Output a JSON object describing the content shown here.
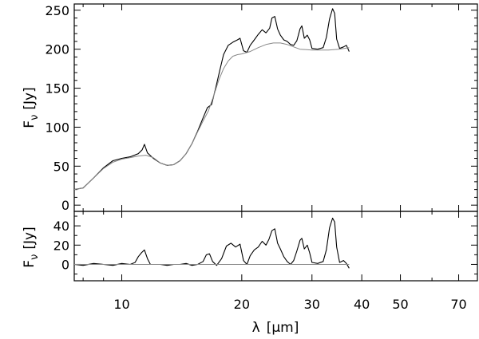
{
  "chart_data": [
    {
      "type": "line",
      "panel": "top",
      "ylabel": "F",
      "ylabel_subscript": "ν",
      "ylabel_unit": "[Jy]",
      "xlim": [
        7.6,
        78
      ],
      "xscale": "log",
      "ylim": [
        -8,
        258
      ],
      "yticks": [
        0,
        50,
        100,
        150,
        200,
        250
      ],
      "ytick_labels": [
        "0",
        "50",
        "100",
        "150",
        "200",
        "250"
      ],
      "grid": false,
      "series": [
        {
          "color": "#000000",
          "points": [
            [
              7.6,
              20
            ],
            [
              8.0,
              22
            ],
            [
              8.5,
              35
            ],
            [
              9.0,
              48
            ],
            [
              9.5,
              57
            ],
            [
              10.0,
              60
            ],
            [
              10.5,
              62
            ],
            [
              11.0,
              66
            ],
            [
              11.25,
              71
            ],
            [
              11.4,
              78
            ],
            [
              11.6,
              67
            ],
            [
              12.0,
              60
            ],
            [
              12.5,
              54
            ],
            [
              13.0,
              51
            ],
            [
              13.5,
              52
            ],
            [
              14.0,
              57
            ],
            [
              14.5,
              66
            ],
            [
              15.0,
              79
            ],
            [
              15.5,
              95
            ],
            [
              16.0,
              112
            ],
            [
              16.4,
              125
            ],
            [
              16.8,
              129
            ],
            [
              17.2,
              150
            ],
            [
              17.6,
              172
            ],
            [
              18.0,
              193
            ],
            [
              18.5,
              205
            ],
            [
              19.0,
              209
            ],
            [
              19.5,
              212
            ],
            [
              19.8,
              214
            ],
            [
              20.2,
              198
            ],
            [
              20.6,
              196
            ],
            [
              21.0,
              205
            ],
            [
              21.5,
              212
            ],
            [
              22.0,
              219
            ],
            [
              22.5,
              225
            ],
            [
              23.0,
              221
            ],
            [
              23.5,
              227
            ],
            [
              23.8,
              240
            ],
            [
              24.2,
              242
            ],
            [
              24.6,
              226
            ],
            [
              25.0,
              218
            ],
            [
              25.5,
              212
            ],
            [
              26.0,
              210
            ],
            [
              26.5,
              206
            ],
            [
              27.0,
              205
            ],
            [
              27.5,
              211
            ],
            [
              28.0,
              226
            ],
            [
              28.3,
              230
            ],
            [
              28.7,
              214
            ],
            [
              29.2,
              218
            ],
            [
              29.6,
              212
            ],
            [
              30.0,
              201
            ],
            [
              31.0,
              200
            ],
            [
              32.0,
              202
            ],
            [
              32.6,
              215
            ],
            [
              33.2,
              239
            ],
            [
              33.8,
              252
            ],
            [
              34.2,
              246
            ],
            [
              34.6,
              213
            ],
            [
              35.2,
              201
            ],
            [
              36.0,
              203
            ],
            [
              36.6,
              205
            ],
            [
              37.2,
              197
            ]
          ]
        },
        {
          "color": "#888888",
          "points": [
            [
              7.6,
              20
            ],
            [
              8.0,
              22
            ],
            [
              8.5,
              35
            ],
            [
              9.0,
              47
            ],
            [
              9.5,
              55
            ],
            [
              10.0,
              59
            ],
            [
              10.5,
              61
            ],
            [
              11.0,
              63
            ],
            [
              11.5,
              64
            ],
            [
              12.0,
              61
            ],
            [
              12.5,
              54
            ],
            [
              13.0,
              51
            ],
            [
              13.5,
              52
            ],
            [
              14.0,
              57
            ],
            [
              14.5,
              66
            ],
            [
              15.0,
              79
            ],
            [
              15.5,
              94
            ],
            [
              16.0,
              108
            ],
            [
              16.5,
              121
            ],
            [
              17.0,
              140
            ],
            [
              17.5,
              160
            ],
            [
              18.0,
              175
            ],
            [
              18.5,
              185
            ],
            [
              19.0,
              191
            ],
            [
              19.5,
              193
            ],
            [
              20.0,
              194
            ],
            [
              21.0,
              197
            ],
            [
              22.0,
              202
            ],
            [
              23.0,
              206
            ],
            [
              24.0,
              208
            ],
            [
              25.0,
              208
            ],
            [
              26.0,
              206
            ],
            [
              27.0,
              203
            ],
            [
              28.0,
              200
            ],
            [
              30.0,
              199
            ],
            [
              33.0,
              199
            ],
            [
              35.0,
              200
            ],
            [
              37.2,
              202
            ]
          ]
        }
      ]
    },
    {
      "type": "line",
      "panel": "bottom",
      "xlabel": "λ",
      "xlabel_unit": "[μm]",
      "ylabel": "F",
      "ylabel_subscript": "ν",
      "ylabel_unit": "[Jy]",
      "xlim": [
        7.6,
        78
      ],
      "xscale": "log",
      "xticks": [
        10,
        20,
        30,
        40,
        50,
        70
      ],
      "xtick_labels": [
        "10",
        "20",
        "30",
        "40",
        "50",
        "70"
      ],
      "ylim": [
        -17,
        55
      ],
      "yticks": [
        0,
        20,
        40
      ],
      "ytick_labels": [
        "0",
        "20",
        "40"
      ],
      "grid": false,
      "series": [
        {
          "color": "#000000",
          "points": [
            [
              7.6,
              0
            ],
            [
              8.0,
              -1
            ],
            [
              8.5,
              1
            ],
            [
              9.0,
              0
            ],
            [
              9.5,
              -1
            ],
            [
              10.0,
              1
            ],
            [
              10.5,
              0
            ],
            [
              10.8,
              2
            ],
            [
              11.0,
              8
            ],
            [
              11.2,
              12
            ],
            [
              11.4,
              15
            ],
            [
              11.6,
              6
            ],
            [
              11.8,
              0
            ],
            [
              12.5,
              0
            ],
            [
              13.0,
              -1
            ],
            [
              13.5,
              0
            ],
            [
              14.0,
              0
            ],
            [
              14.5,
              1
            ],
            [
              15.0,
              -1
            ],
            [
              15.5,
              0
            ],
            [
              16.0,
              3
            ],
            [
              16.3,
              10
            ],
            [
              16.6,
              11
            ],
            [
              16.9,
              3
            ],
            [
              17.3,
              -1
            ],
            [
              17.8,
              6
            ],
            [
              18.3,
              19
            ],
            [
              18.8,
              22
            ],
            [
              19.3,
              18
            ],
            [
              19.8,
              21
            ],
            [
              20.2,
              4
            ],
            [
              20.6,
              0
            ],
            [
              21.0,
              9
            ],
            [
              21.5,
              15
            ],
            [
              22.0,
              18
            ],
            [
              22.5,
              24
            ],
            [
              23.0,
              20
            ],
            [
              23.4,
              26
            ],
            [
              23.8,
              35
            ],
            [
              24.2,
              37
            ],
            [
              24.6,
              22
            ],
            [
              25.0,
              16
            ],
            [
              25.5,
              8
            ],
            [
              26.0,
              3
            ],
            [
              26.5,
              0
            ],
            [
              27.0,
              4
            ],
            [
              27.5,
              14
            ],
            [
              28.0,
              25
            ],
            [
              28.3,
              27
            ],
            [
              28.7,
              16
            ],
            [
              29.2,
              20
            ],
            [
              29.6,
              12
            ],
            [
              30.0,
              2
            ],
            [
              31.0,
              1
            ],
            [
              32.0,
              3
            ],
            [
              32.6,
              15
            ],
            [
              33.2,
              38
            ],
            [
              33.8,
              48
            ],
            [
              34.2,
              44
            ],
            [
              34.6,
              18
            ],
            [
              35.2,
              2
            ],
            [
              36.0,
              4
            ],
            [
              36.6,
              1
            ],
            [
              37.2,
              -4
            ]
          ]
        },
        {
          "color": "#888888",
          "points": [
            [
              7.6,
              0
            ],
            [
              37.2,
              0
            ]
          ]
        }
      ]
    }
  ]
}
